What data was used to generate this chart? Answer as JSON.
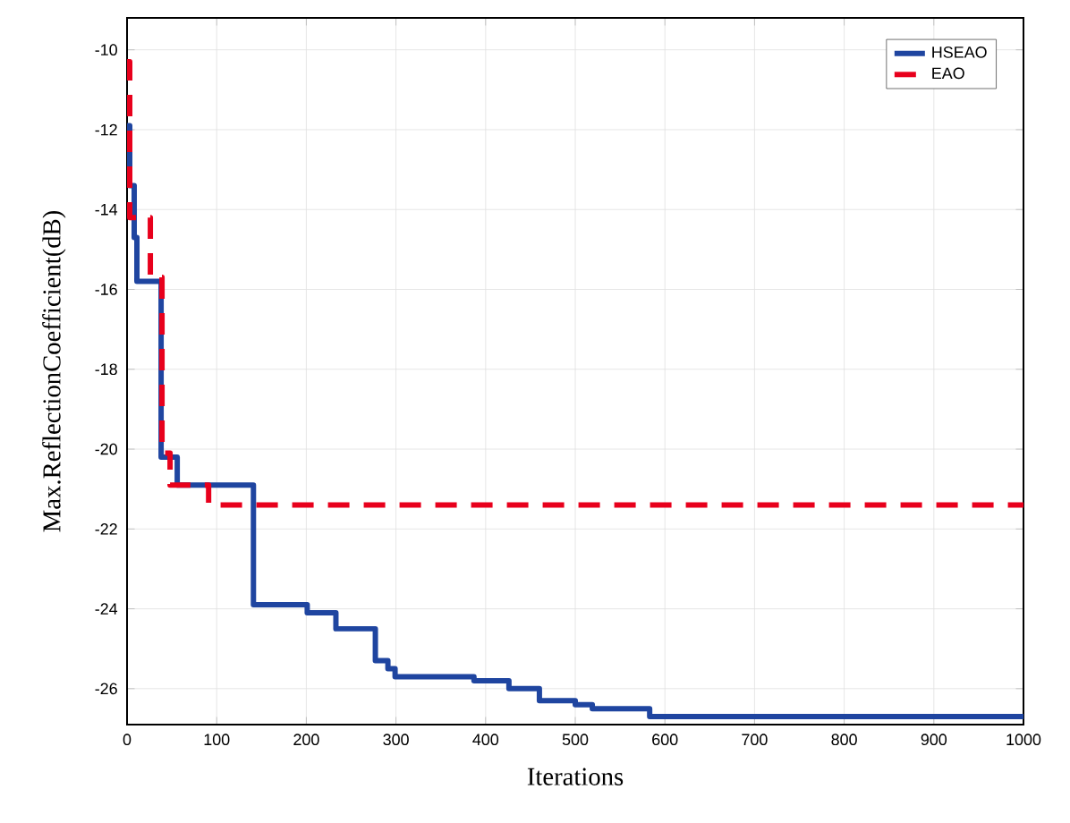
{
  "chart_data": {
    "type": "step",
    "xlabel": "Iterations",
    "ylabel": "Max.ReflectionCoefficient(dB)",
    "grid": true,
    "legend": "top right",
    "xlim": [
      0,
      1000
    ],
    "xticks": [
      0,
      100,
      200,
      300,
      400,
      500,
      600,
      700,
      800,
      900,
      1000
    ],
    "ylim": [
      -26.9,
      -9.2
    ],
    "yticks": [
      -10,
      -12,
      -14,
      -16,
      -18,
      -20,
      -22,
      -24,
      -26
    ],
    "series": [
      {
        "name": "HSEAO",
        "color": "#1f45a0",
        "line_style": "solid",
        "x": [
          0,
          3,
          8,
          11,
          38,
          56,
          141,
          201,
          233,
          277,
          291,
          299,
          387,
          426,
          460,
          500,
          519,
          583,
          1000
        ],
        "values": [
          -11.9,
          -13.4,
          -14.7,
          -15.8,
          -20.2,
          -20.9,
          -23.9,
          -24.1,
          -24.5,
          -25.3,
          -25.5,
          -25.7,
          -25.8,
          -26.0,
          -26.3,
          -26.4,
          -26.5,
          -26.7,
          -26.7
        ]
      },
      {
        "name": "EAO",
        "color": "#e8001c",
        "line_style": "dashed",
        "x": [
          0,
          3,
          26,
          39,
          48,
          91,
          1000
        ],
        "values": [
          -10.3,
          -14.2,
          -15.7,
          -20.1,
          -20.9,
          -21.4,
          -21.4
        ]
      }
    ]
  }
}
